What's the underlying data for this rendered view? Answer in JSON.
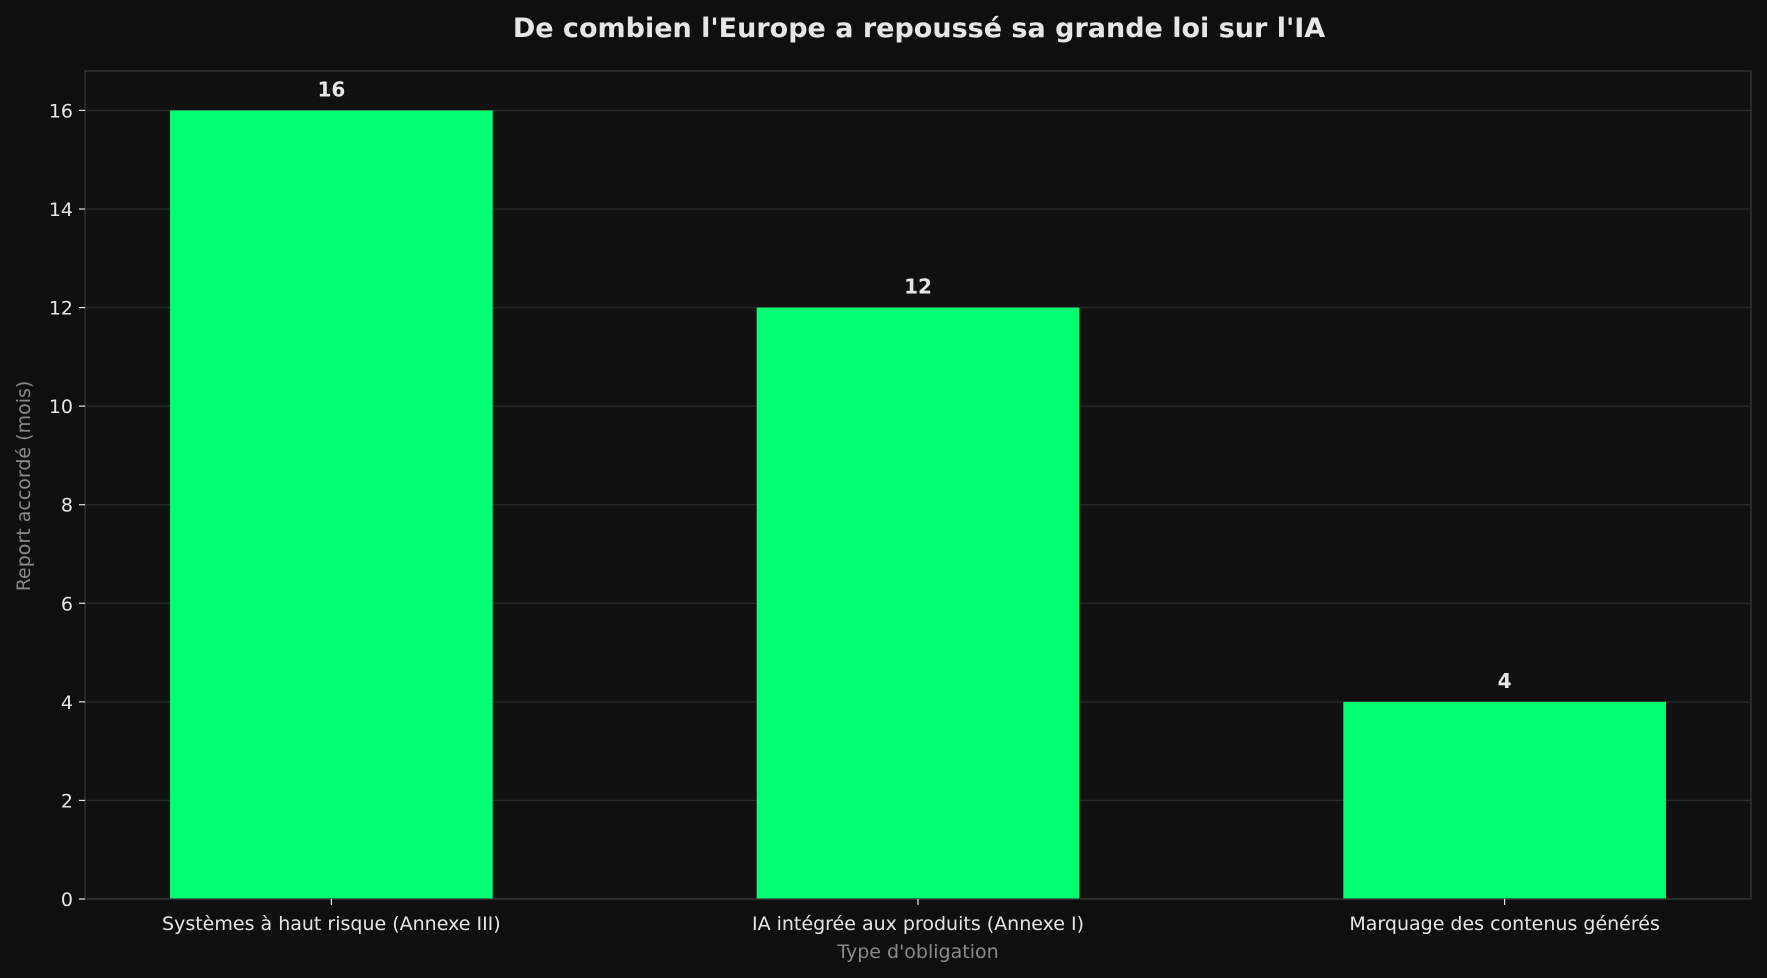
{
  "chart_data": {
    "type": "bar",
    "title": "De combien l'Europe a repoussé sa grande loi sur l'IA",
    "xlabel": "Type d'obligation",
    "ylabel": "Report accordé (mois)",
    "categories": [
      "Systèmes à haut risque (Annexe III)",
      "IA intégrée aux produits (Annexe I)",
      "Marquage des contenus générés"
    ],
    "values": [
      16,
      12,
      4
    ],
    "data_labels": [
      "16",
      "12",
      "4"
    ],
    "ylim": [
      0,
      16.8
    ],
    "yticks": [
      0,
      2,
      4,
      6,
      8,
      10,
      12,
      14,
      16
    ],
    "grid": true,
    "legend": "none",
    "colors": {
      "background": "#0f0f10",
      "plot_background": "#111112",
      "bar": "#00ff73",
      "grid": "#2b2b2d",
      "spine": "#3a3a3c",
      "text": "#e6e6e6",
      "axis_label": "#8a8a8a"
    }
  }
}
